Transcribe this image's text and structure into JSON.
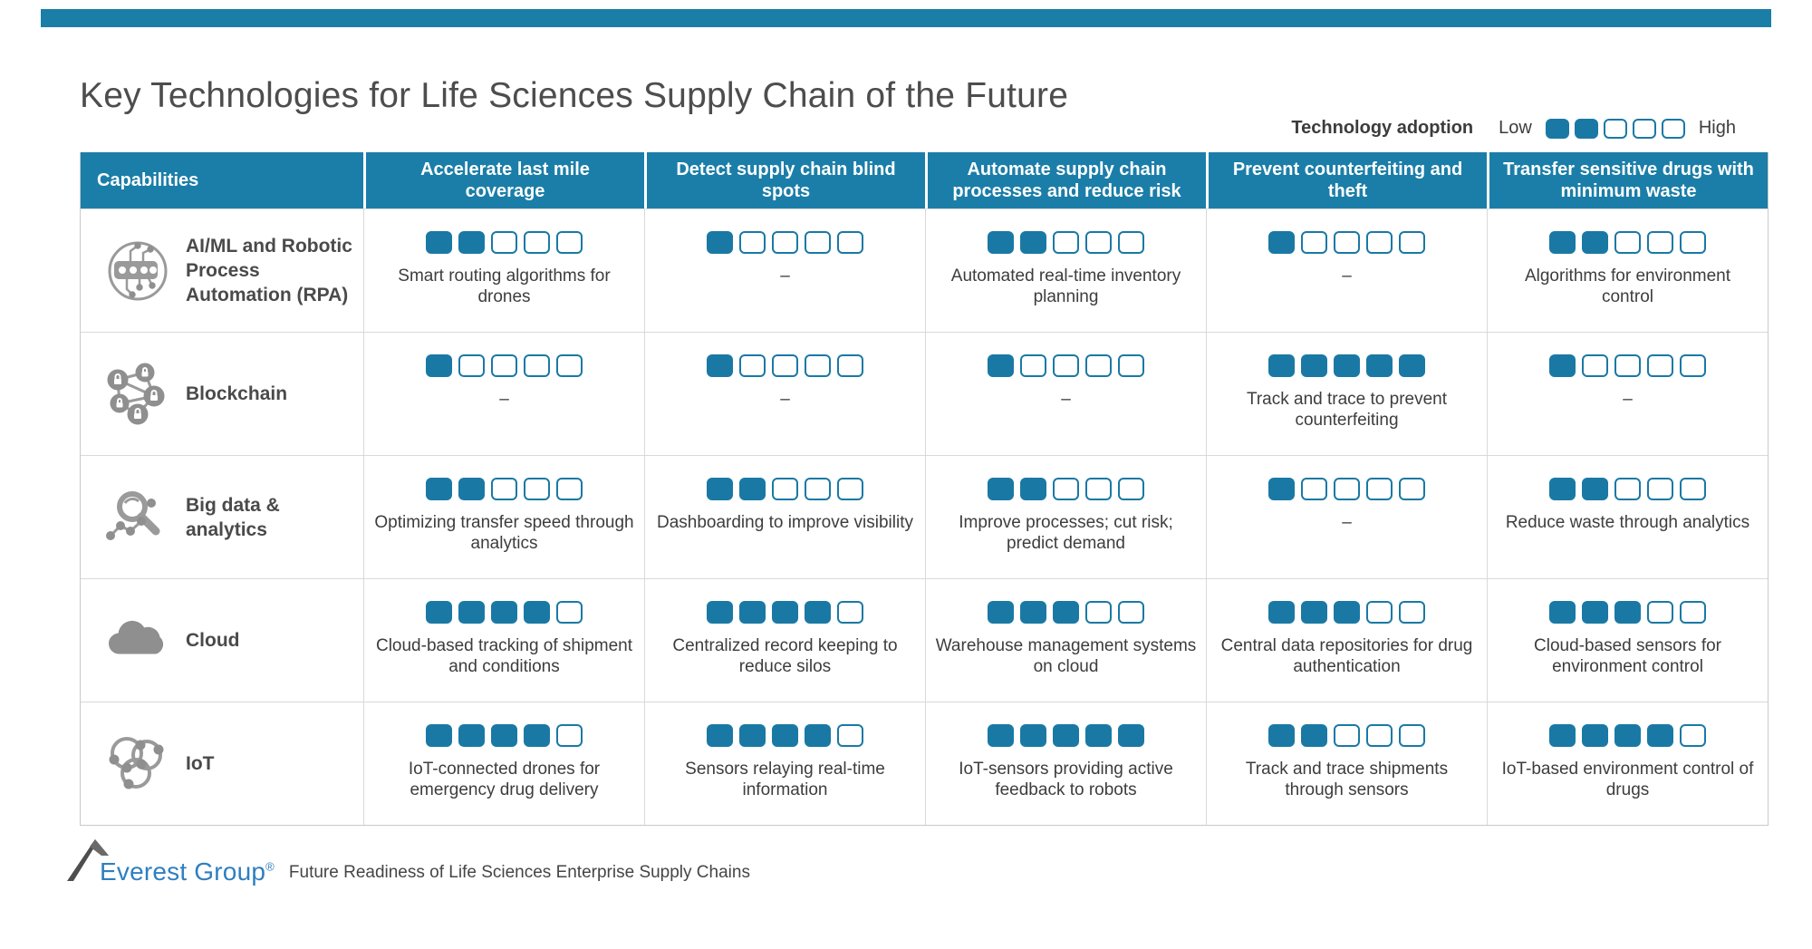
{
  "page": {
    "title": "Key Technologies for Life Sciences Supply Chain of the Future",
    "accent_color": "#1b7ea8",
    "square_color": "#1a79a4"
  },
  "legend": {
    "label": "Technology adoption",
    "low": "Low",
    "high": "High",
    "filled": 2,
    "total": 5
  },
  "table": {
    "columns": [
      "Capabilities",
      "Accelerate last mile coverage",
      "Detect supply chain blind spots",
      "Automate supply chain processes and reduce risk",
      "Prevent counterfeiting and theft",
      "Transfer sensitive drugs with minimum waste"
    ],
    "rows": [
      {
        "capability": "AI/ML and Robotic Process Automation (RPA)",
        "icon": "circuit-brain-icon",
        "cells": [
          {
            "rating": 2,
            "text": "Smart routing algorithms for drones"
          },
          {
            "rating": 1,
            "text": "–"
          },
          {
            "rating": 2,
            "text": "Automated real-time inventory planning"
          },
          {
            "rating": 1,
            "text": "–"
          },
          {
            "rating": 2,
            "text": "Algorithms for environment control"
          }
        ]
      },
      {
        "capability": "Blockchain",
        "icon": "lock-network-icon",
        "cells": [
          {
            "rating": 1,
            "text": "–"
          },
          {
            "rating": 1,
            "text": "–"
          },
          {
            "rating": 1,
            "text": "–"
          },
          {
            "rating": 5,
            "text": "Track and trace to prevent counterfeiting"
          },
          {
            "rating": 1,
            "text": "–"
          }
        ]
      },
      {
        "capability": "Big data & analytics",
        "icon": "magnifier-data-icon",
        "cells": [
          {
            "rating": 2,
            "text": "Optimizing transfer speed through analytics"
          },
          {
            "rating": 2,
            "text": "Dashboarding to improve visibility"
          },
          {
            "rating": 2,
            "text": "Improve processes; cut risk; predict demand"
          },
          {
            "rating": 1,
            "text": "–"
          },
          {
            "rating": 2,
            "text": "Reduce waste through analytics"
          }
        ]
      },
      {
        "capability": "Cloud",
        "icon": "cloud-icon",
        "cells": [
          {
            "rating": 4,
            "text": "Cloud-based tracking of shipment and conditions"
          },
          {
            "rating": 4,
            "text": "Centralized record keeping to reduce silos"
          },
          {
            "rating": 3,
            "text": "Warehouse management systems on cloud"
          },
          {
            "rating": 3,
            "text": "Central data repositories for drug authentication"
          },
          {
            "rating": 3,
            "text": "Cloud-based sensors for environment control"
          }
        ]
      },
      {
        "capability": "IoT",
        "icon": "connected-nodes-icon",
        "cells": [
          {
            "rating": 4,
            "text": "IoT-connected drones for emergency drug delivery"
          },
          {
            "rating": 4,
            "text": "Sensors relaying real-time information"
          },
          {
            "rating": 5,
            "text": "IoT-sensors providing active feedback to robots"
          },
          {
            "rating": 2,
            "text": "Track and trace shipments through sensors"
          },
          {
            "rating": 4,
            "text": "IoT-based environment control of drugs"
          }
        ]
      }
    ]
  },
  "footer": {
    "brand": "Everest Group",
    "registered": "®",
    "caption": "Future Readiness of Life Sciences Enterprise Supply Chains"
  },
  "chart_data": {
    "type": "heatmap",
    "title": "Key Technologies for Life Sciences Supply Chain of the Future",
    "x_categories": [
      "Accelerate last mile coverage",
      "Detect supply chain blind spots",
      "Automate supply chain processes and reduce risk",
      "Prevent counterfeiting and theft",
      "Transfer sensitive drugs with minimum waste"
    ],
    "y_categories": [
      "AI/ML and Robotic Process Automation (RPA)",
      "Blockchain",
      "Big data & analytics",
      "Cloud",
      "IoT"
    ],
    "values": [
      [
        2,
        1,
        2,
        1,
        2
      ],
      [
        1,
        1,
        1,
        5,
        1
      ],
      [
        2,
        2,
        2,
        1,
        2
      ],
      [
        4,
        4,
        3,
        3,
        3
      ],
      [
        4,
        4,
        5,
        2,
        4
      ]
    ],
    "cell_notes": [
      [
        "Smart routing algorithms for drones",
        "–",
        "Automated real-time inventory planning",
        "–",
        "Algorithms for environment control"
      ],
      [
        "–",
        "–",
        "–",
        "Track and trace to prevent counterfeiting",
        "–"
      ],
      [
        "Optimizing transfer speed through analytics",
        "Dashboarding to improve visibility",
        "Improve processes; cut risk; predict demand",
        "–",
        "Reduce waste through analytics"
      ],
      [
        "Cloud-based tracking of shipment and conditions",
        "Centralized record keeping to reduce silos",
        "Warehouse management systems on cloud",
        "Central data repositories for drug authentication",
        "Cloud-based sensors for environment control"
      ],
      [
        "IoT-connected drones for emergency drug delivery",
        "Sensors relaying real-time information",
        "IoT-sensors providing active feedback to robots",
        "Track and trace shipments through sensors",
        "IoT-based environment control of drugs"
      ]
    ],
    "value_scale": {
      "min": 0,
      "max": 5,
      "low_label": "Low",
      "high_label": "High",
      "legend_title": "Technology adoption"
    },
    "legend_position": "top-right",
    "grid": true
  }
}
